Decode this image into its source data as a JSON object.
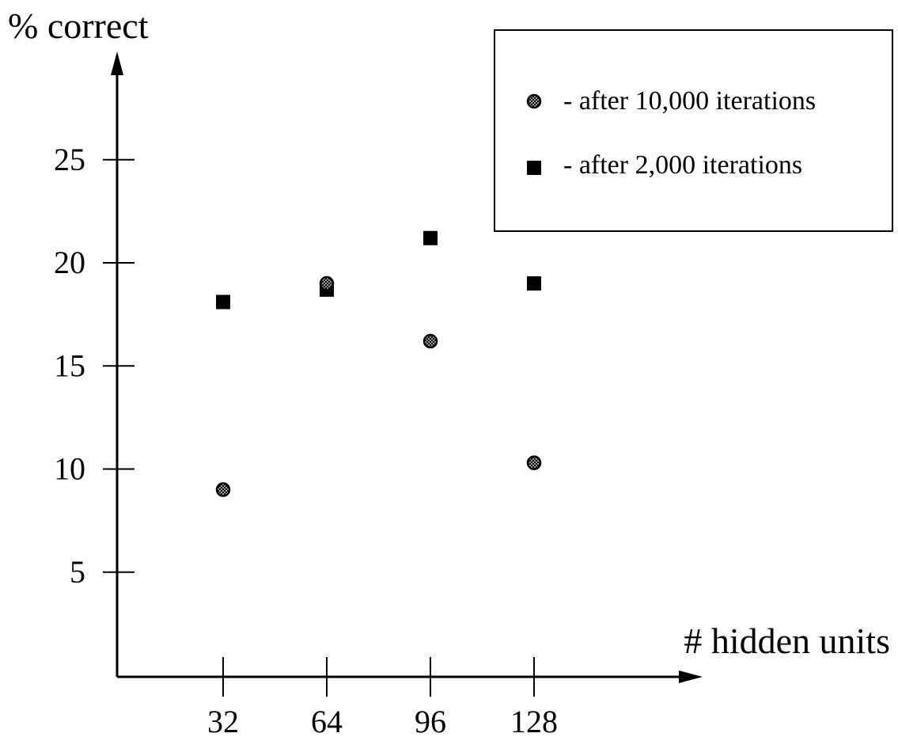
{
  "chart_data": {
    "type": "scatter",
    "xlabel": "# hidden units",
    "ylabel": "% correct",
    "x_ticks": [
      32,
      64,
      96,
      128
    ],
    "y_ticks": [
      5,
      10,
      15,
      20,
      25
    ],
    "grid": false,
    "legend_position": "top-right",
    "series": [
      {
        "name": "- after 10,000 iterations",
        "marker": "circle-hatched",
        "points": [
          {
            "x": 32,
            "y": 9.0
          },
          {
            "x": 64,
            "y": 19.0
          },
          {
            "x": 96,
            "y": 16.2
          },
          {
            "x": 128,
            "y": 10.3
          }
        ]
      },
      {
        "name": "- after 2,000 iterations",
        "marker": "square-filled",
        "points": [
          {
            "x": 32,
            "y": 18.1
          },
          {
            "x": 64,
            "y": 18.7
          },
          {
            "x": 96,
            "y": 21.2
          },
          {
            "x": 128,
            "y": 19.0
          }
        ]
      }
    ]
  }
}
